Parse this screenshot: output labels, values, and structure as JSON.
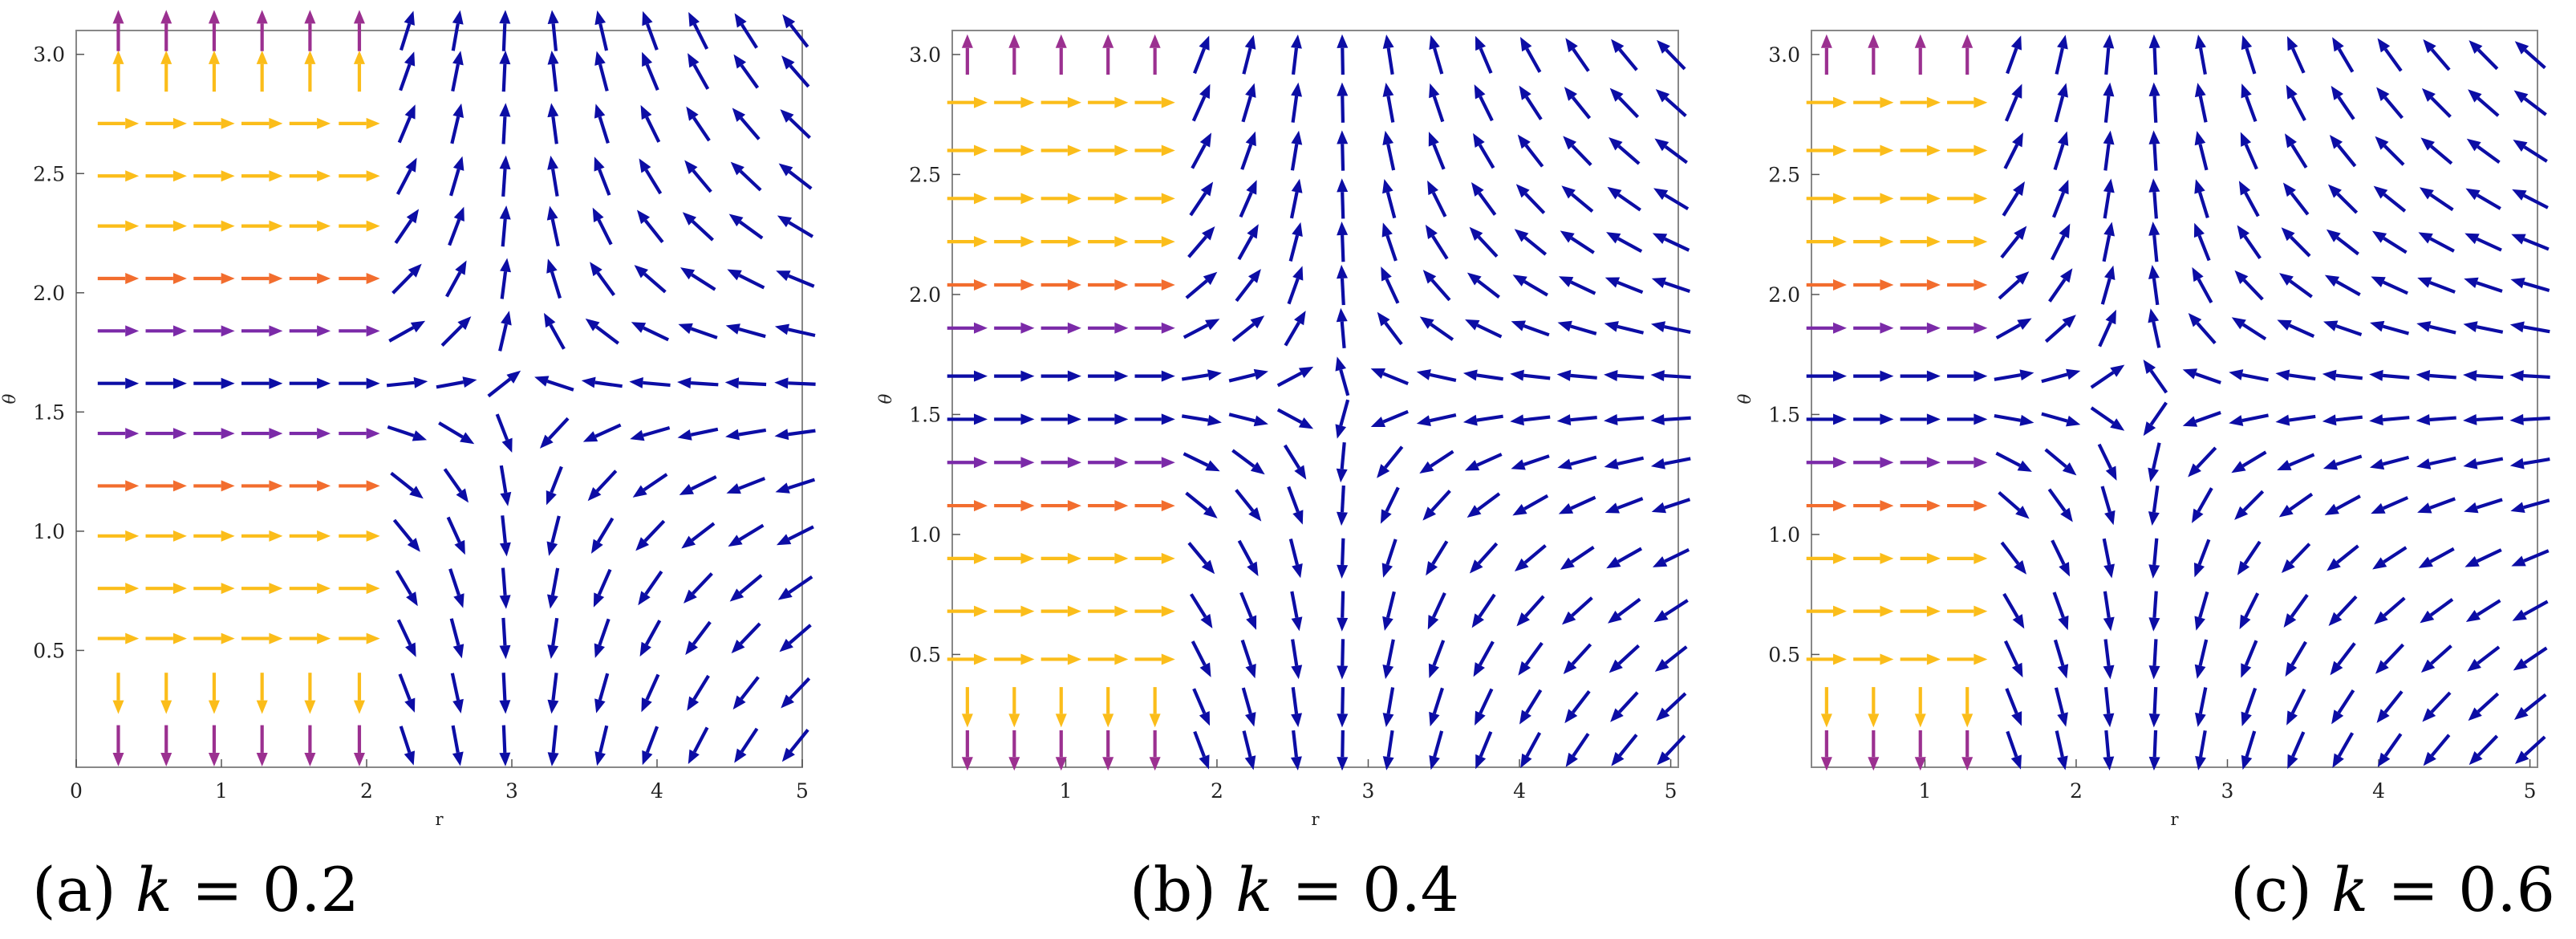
{
  "figure": {
    "colors": {
      "slow": "#fbbd1a",
      "mid": "#f26d2e",
      "fast": "#7b2aa8",
      "fastest": "#9b3090",
      "blue": "#0c0da5",
      "frame": "#888888"
    }
  },
  "chart_data": [
    {
      "type": "vector_field",
      "caption": "(a) k = 0.2",
      "caption_parts": {
        "label": "(a) ",
        "var": "k",
        "rest": " = 0.2"
      },
      "xlabel": "r",
      "ylabel": "θ",
      "xlim": [
        0,
        5
      ],
      "ylim": [
        0.01,
        3.1
      ],
      "xticks": [
        "0",
        "1",
        "2",
        "3",
        "4",
        "5"
      ],
      "xtick_values": [
        0,
        1,
        2,
        3,
        4,
        5
      ],
      "yticks": [
        "0.5",
        "1.0",
        "1.5",
        "2.0",
        "2.5",
        "3.0"
      ],
      "ytick_values": [
        0.5,
        1.0,
        1.5,
        2.0,
        2.5,
        3.0
      ],
      "grid": false,
      "params": {
        "k": 0.2,
        "r_sep": 2.0,
        "r_stag": 3.05,
        "stagnation": [
          3.05,
          1.5708
        ]
      },
      "samples_x": [
        0.29,
        0.62,
        0.95,
        1.28,
        1.61,
        1.95,
        2.28,
        2.62,
        2.95,
        3.29,
        3.62,
        3.95,
        4.28,
        4.61,
        4.95
      ],
      "samples_y": [
        0.1,
        0.32,
        0.55,
        0.76,
        0.98,
        1.19,
        1.41,
        1.62,
        1.84,
        2.06,
        2.28,
        2.49,
        2.71,
        2.93,
        3.1
      ]
    },
    {
      "type": "vector_field",
      "caption": "(b) k = 0.4",
      "caption_parts": {
        "label": "(b) ",
        "var": "k",
        "rest": " = 0.4"
      },
      "xlabel": "r",
      "ylabel": "θ",
      "xlim": [
        0.25,
        5.05
      ],
      "ylim": [
        0.03,
        3.1
      ],
      "xticks": [
        "1",
        "2",
        "3",
        "4",
        "5"
      ],
      "xtick_values": [
        1,
        2,
        3,
        4,
        5
      ],
      "yticks": [
        "0.5",
        "1.0",
        "1.5",
        "2.0",
        "2.5",
        "3.0"
      ],
      "ytick_values": [
        0.5,
        1.0,
        1.5,
        2.0,
        2.5,
        3.0
      ],
      "grid": false,
      "params": {
        "k": 0.4,
        "r_sep": 1.72,
        "r_stag": 2.79,
        "stagnation": [
          2.79,
          1.5708
        ]
      },
      "samples_x": [
        0.35,
        0.66,
        0.97,
        1.28,
        1.59,
        1.9,
        2.21,
        2.52,
        2.83,
        3.14,
        3.45,
        3.76,
        4.07,
        4.38,
        4.69,
        5.0
      ],
      "samples_y": [
        0.1,
        0.28,
        0.48,
        0.68,
        0.9,
        1.12,
        1.3,
        1.48,
        1.66,
        1.86,
        2.04,
        2.22,
        2.4,
        2.6,
        2.8,
        3.0
      ]
    },
    {
      "type": "vector_field",
      "caption": "(c) k = 0.6",
      "caption_parts": {
        "label": "(c) ",
        "var": "k",
        "rest": " = 0.6"
      },
      "xlabel": "r",
      "ylabel": "θ",
      "xlim": [
        0.25,
        5.05
      ],
      "ylim": [
        0.03,
        3.1
      ],
      "xticks": [
        "1",
        "2",
        "3",
        "4",
        "5"
      ],
      "xtick_values": [
        1,
        2,
        3,
        4,
        5
      ],
      "yticks": [
        "0.5",
        "1.0",
        "1.5",
        "2.0",
        "2.5",
        "3.0"
      ],
      "ytick_values": [
        0.5,
        1.0,
        1.5,
        2.0,
        2.5,
        3.0
      ],
      "grid": false,
      "params": {
        "k": 0.6,
        "r_sep": 1.5,
        "r_stag": 2.42,
        "stagnation": [
          2.42,
          1.5708
        ]
      },
      "samples_x": [
        0.35,
        0.66,
        0.97,
        1.28,
        1.59,
        1.9,
        2.21,
        2.52,
        2.83,
        3.14,
        3.45,
        3.76,
        4.07,
        4.38,
        4.69,
        5.0
      ],
      "samples_y": [
        0.1,
        0.28,
        0.48,
        0.68,
        0.9,
        1.12,
        1.3,
        1.48,
        1.66,
        1.86,
        2.04,
        2.22,
        2.4,
        2.6,
        2.8,
        3.0
      ]
    }
  ]
}
